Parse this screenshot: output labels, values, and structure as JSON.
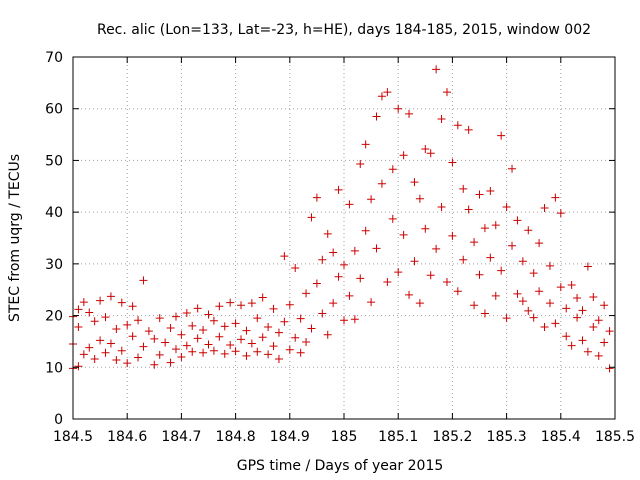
{
  "chart_data": {
    "type": "scatter",
    "title": "Rec. alic (Lon=133, Lat=-23, h=HE), days 184-185, 2015, window 002",
    "xlabel": "GPS time / Days of year 2015",
    "ylabel": "STEC from uqrg / TECUs",
    "xlim": [
      184.5,
      185.5
    ],
    "ylim": [
      0,
      70
    ],
    "xticks": [
      "184.5",
      "184.6",
      "184.7",
      "184.8",
      "184.9",
      "185",
      "185.1",
      "185.2",
      "185.3",
      "185.4",
      "185.5"
    ],
    "yticks": [
      "0",
      "10",
      "20",
      "30",
      "40",
      "50",
      "60",
      "70"
    ],
    "grid": true,
    "marker": "+",
    "color": "#cc0000",
    "points": [
      [
        184.5,
        9.8
      ],
      [
        184.5,
        14.5
      ],
      [
        184.5,
        19.8
      ],
      [
        184.51,
        10.2
      ],
      [
        184.51,
        17.8
      ],
      [
        184.51,
        21.2
      ],
      [
        184.52,
        12.5
      ],
      [
        184.52,
        22.6
      ],
      [
        184.53,
        13.8
      ],
      [
        184.53,
        20.6
      ],
      [
        184.54,
        11.6
      ],
      [
        184.54,
        18.9
      ],
      [
        184.55,
        15.2
      ],
      [
        184.55,
        22.9
      ],
      [
        184.56,
        12.8
      ],
      [
        184.56,
        19.7
      ],
      [
        184.57,
        14.6
      ],
      [
        184.57,
        23.7
      ],
      [
        184.58,
        11.4
      ],
      [
        184.58,
        17.4
      ],
      [
        184.59,
        13.2
      ],
      [
        184.59,
        22.5
      ],
      [
        184.6,
        10.8
      ],
      [
        184.6,
        18.2
      ],
      [
        184.61,
        16.0
      ],
      [
        184.61,
        21.8
      ],
      [
        184.62,
        11.9
      ],
      [
        184.62,
        19.1
      ],
      [
        184.63,
        26.8
      ],
      [
        184.63,
        14.0
      ],
      [
        184.64,
        17.0
      ],
      [
        184.65,
        10.5
      ],
      [
        184.65,
        15.5
      ],
      [
        184.66,
        12.4
      ],
      [
        184.66,
        19.5
      ],
      [
        184.67,
        14.8
      ],
      [
        184.68,
        10.9
      ],
      [
        184.68,
        17.6
      ],
      [
        184.69,
        13.5
      ],
      [
        184.69,
        19.8
      ],
      [
        184.7,
        12.0
      ],
      [
        184.7,
        16.3
      ],
      [
        184.71,
        14.2
      ],
      [
        184.71,
        20.5
      ],
      [
        184.72,
        13.0
      ],
      [
        184.72,
        18.0
      ],
      [
        184.73,
        15.6
      ],
      [
        184.73,
        21.4
      ],
      [
        184.74,
        12.8
      ],
      [
        184.74,
        17.2
      ],
      [
        184.75,
        14.4
      ],
      [
        184.75,
        20.2
      ],
      [
        184.76,
        13.2
      ],
      [
        184.76,
        19.0
      ],
      [
        184.77,
        15.9
      ],
      [
        184.77,
        21.8
      ],
      [
        184.78,
        12.6
      ],
      [
        184.78,
        17.9
      ],
      [
        184.79,
        14.3
      ],
      [
        184.79,
        22.5
      ],
      [
        184.8,
        13.1
      ],
      [
        184.8,
        18.5
      ],
      [
        184.81,
        15.4
      ],
      [
        184.81,
        22.0
      ],
      [
        184.82,
        12.2
      ],
      [
        184.82,
        17.1
      ],
      [
        184.83,
        14.6
      ],
      [
        184.83,
        22.4
      ],
      [
        184.84,
        13.0
      ],
      [
        184.84,
        19.5
      ],
      [
        184.85,
        15.8
      ],
      [
        184.85,
        23.5
      ],
      [
        184.86,
        12.5
      ],
      [
        184.86,
        17.8
      ],
      [
        184.87,
        14.1
      ],
      [
        184.87,
        21.3
      ],
      [
        184.88,
        11.6
      ],
      [
        184.88,
        16.7
      ],
      [
        184.89,
        31.5
      ],
      [
        184.89,
        18.8
      ],
      [
        184.9,
        13.4
      ],
      [
        184.9,
        22.1
      ],
      [
        184.91,
        15.7
      ],
      [
        184.91,
        29.2
      ],
      [
        184.92,
        12.8
      ],
      [
        184.92,
        19.4
      ],
      [
        184.93,
        14.9
      ],
      [
        184.93,
        24.3
      ],
      [
        184.94,
        39.0
      ],
      [
        184.94,
        17.5
      ],
      [
        184.95,
        42.8
      ],
      [
        184.95,
        26.2
      ],
      [
        184.96,
        20.4
      ],
      [
        184.96,
        30.8
      ],
      [
        184.97,
        16.3
      ],
      [
        184.97,
        35.8
      ],
      [
        184.98,
        22.4
      ],
      [
        184.98,
        32.2
      ],
      [
        184.99,
        44.3
      ],
      [
        184.99,
        27.5
      ],
      [
        185.0,
        19.1
      ],
      [
        185.0,
        29.8
      ],
      [
        185.01,
        41.5
      ],
      [
        185.01,
        23.8
      ],
      [
        185.02,
        32.5
      ],
      [
        185.02,
        19.3
      ],
      [
        185.03,
        49.3
      ],
      [
        185.03,
        27.2
      ],
      [
        185.04,
        36.4
      ],
      [
        185.04,
        53.1
      ],
      [
        185.05,
        22.6
      ],
      [
        185.05,
        42.5
      ],
      [
        185.06,
        58.5
      ],
      [
        185.06,
        33.0
      ],
      [
        185.07,
        62.4
      ],
      [
        185.07,
        45.5
      ],
      [
        185.08,
        26.5
      ],
      [
        185.08,
        63.2
      ],
      [
        185.09,
        38.7
      ],
      [
        185.09,
        48.3
      ],
      [
        185.1,
        60.0
      ],
      [
        185.1,
        28.4
      ],
      [
        185.11,
        51.0
      ],
      [
        185.11,
        35.6
      ],
      [
        185.12,
        24.0
      ],
      [
        185.12,
        59.0
      ],
      [
        185.13,
        45.8
      ],
      [
        185.13,
        30.5
      ],
      [
        185.14,
        42.6
      ],
      [
        185.14,
        22.4
      ],
      [
        185.15,
        52.2
      ],
      [
        185.15,
        36.8
      ],
      [
        185.16,
        27.8
      ],
      [
        185.16,
        51.4
      ],
      [
        185.17,
        67.6
      ],
      [
        185.17,
        32.9
      ],
      [
        185.18,
        58.0
      ],
      [
        185.18,
        41.0
      ],
      [
        185.19,
        26.5
      ],
      [
        185.19,
        63.2
      ],
      [
        185.2,
        49.6
      ],
      [
        185.2,
        35.4
      ],
      [
        185.21,
        56.8
      ],
      [
        185.21,
        24.7
      ],
      [
        185.22,
        44.5
      ],
      [
        185.22,
        30.8
      ],
      [
        185.23,
        55.9
      ],
      [
        185.23,
        40.5
      ],
      [
        185.24,
        22.0
      ],
      [
        185.24,
        34.2
      ],
      [
        185.25,
        43.4
      ],
      [
        185.25,
        27.9
      ],
      [
        185.26,
        36.9
      ],
      [
        185.26,
        20.4
      ],
      [
        185.27,
        44.1
      ],
      [
        185.27,
        31.2
      ],
      [
        185.28,
        23.8
      ],
      [
        185.28,
        37.5
      ],
      [
        185.29,
        54.8
      ],
      [
        185.29,
        28.7
      ],
      [
        185.3,
        41.0
      ],
      [
        185.3,
        19.5
      ],
      [
        185.31,
        48.4
      ],
      [
        185.31,
        33.5
      ],
      [
        185.32,
        24.2
      ],
      [
        185.32,
        38.4
      ],
      [
        185.33,
        22.8
      ],
      [
        185.33,
        30.5
      ],
      [
        185.34,
        36.5
      ],
      [
        185.34,
        20.9
      ],
      [
        185.35,
        28.2
      ],
      [
        185.35,
        19.6
      ],
      [
        185.36,
        34.0
      ],
      [
        185.36,
        24.7
      ],
      [
        185.37,
        40.8
      ],
      [
        185.37,
        17.8
      ],
      [
        185.38,
        29.6
      ],
      [
        185.38,
        22.4
      ],
      [
        185.39,
        42.8
      ],
      [
        185.39,
        18.5
      ],
      [
        185.4,
        39.8
      ],
      [
        185.4,
        25.5
      ],
      [
        185.41,
        16.0
      ],
      [
        185.41,
        21.4
      ],
      [
        185.42,
        25.9
      ],
      [
        185.42,
        14.2
      ],
      [
        185.43,
        19.6
      ],
      [
        185.43,
        23.4
      ],
      [
        185.44,
        15.2
      ],
      [
        185.44,
        21.0
      ],
      [
        185.45,
        29.5
      ],
      [
        185.45,
        13.0
      ],
      [
        185.46,
        17.8
      ],
      [
        185.46,
        23.6
      ],
      [
        185.47,
        12.2
      ],
      [
        185.47,
        19.1
      ],
      [
        185.48,
        14.8
      ],
      [
        185.48,
        22.0
      ],
      [
        185.49,
        9.8
      ],
      [
        185.49,
        17.0
      ]
    ]
  }
}
